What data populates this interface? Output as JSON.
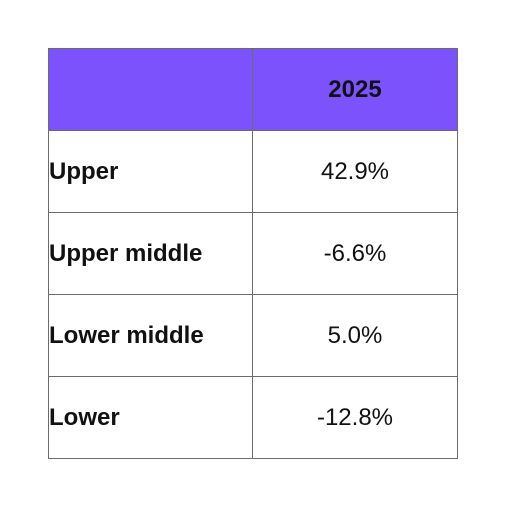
{
  "chart_data": {
    "type": "table",
    "columns": [
      "",
      "2025"
    ],
    "rows": [
      {
        "label": "Upper",
        "value": "42.9%"
      },
      {
        "label": "Upper middle",
        "value": "-6.6%"
      },
      {
        "label": "Lower middle",
        "value": "5.0%"
      },
      {
        "label": "Lower",
        "value": "-12.8%"
      }
    ],
    "header_color": "#7b52fb",
    "border_color": "#6b6b6b"
  }
}
